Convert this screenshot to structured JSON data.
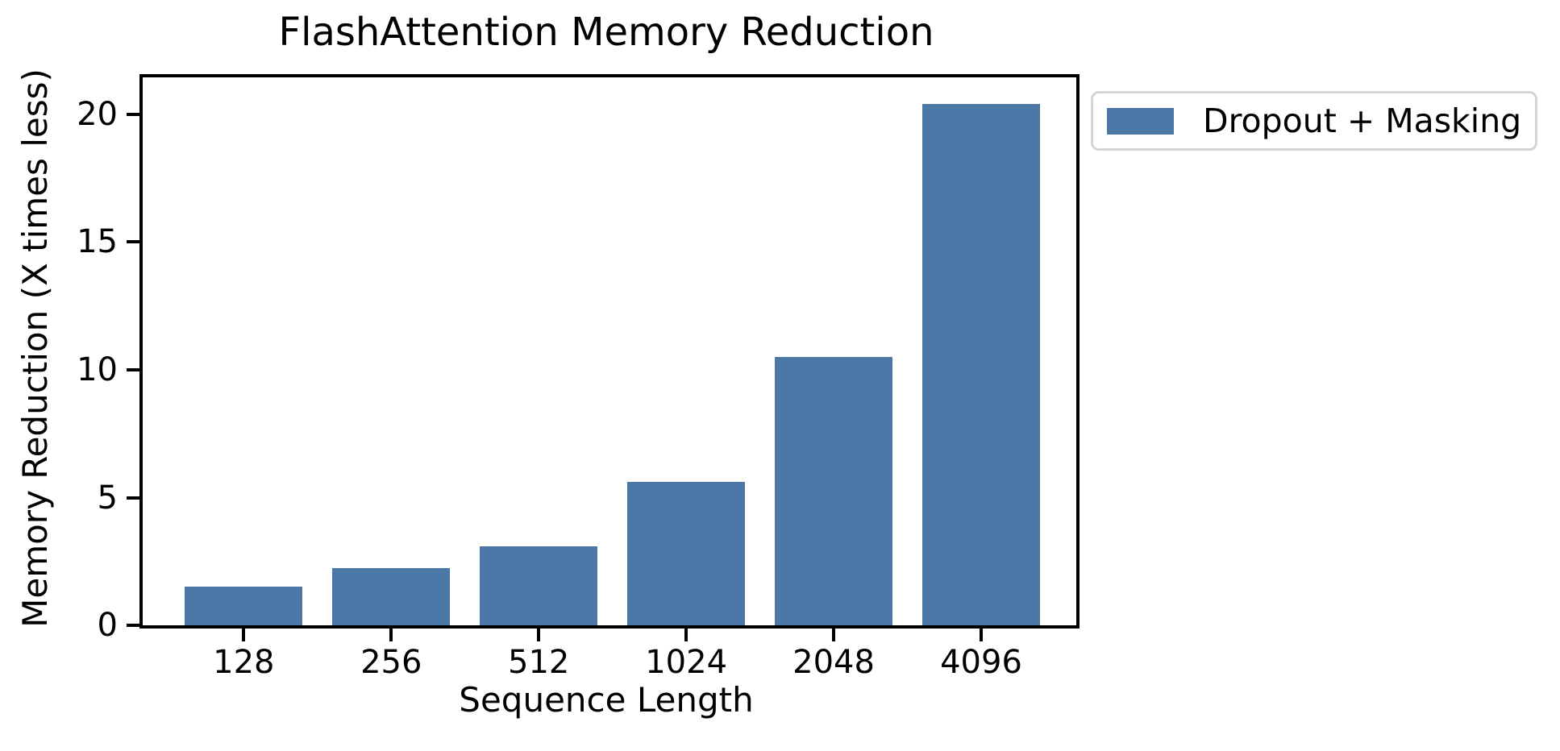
{
  "figure": {
    "title": "FlashAttention Memory Reduction"
  },
  "chart_data": {
    "type": "bar",
    "title": "FlashAttention Memory Reduction",
    "categories": [
      "128",
      "256",
      "512",
      "1024",
      "2048",
      "4096"
    ],
    "values": [
      1.5,
      2.25,
      3.1,
      5.6,
      10.5,
      20.4
    ],
    "xlabel": "Sequence Length",
    "ylabel": "Memory Reduction (X times less)",
    "yticks": [
      0,
      5,
      10,
      15,
      20
    ],
    "ylim": [
      0,
      21.45
    ],
    "grid": false,
    "legend": {
      "position": "upper-right-outside",
      "entries": [
        {
          "label": "Dropout + Masking",
          "color": "#4C78A8"
        }
      ]
    }
  },
  "colors": {
    "bar": "#4C78A8",
    "axis": "#000000",
    "legend_border": "#d4d4d4",
    "background": "#ffffff"
  }
}
